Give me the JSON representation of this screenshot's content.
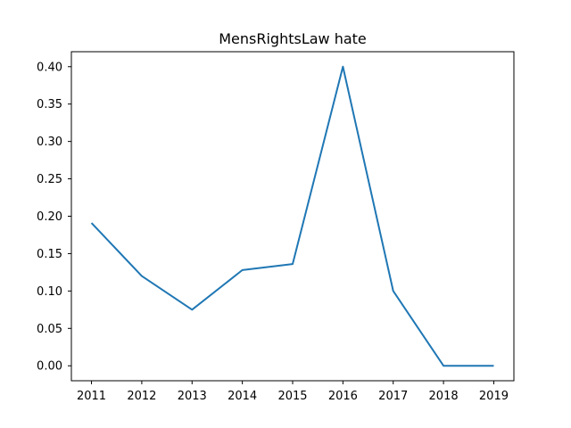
{
  "chart_data": {
    "type": "line",
    "title": "MensRightsLaw hate",
    "xlabel": "",
    "ylabel": "",
    "x": [
      2011,
      2012,
      2013,
      2014,
      2015,
      2016,
      2017,
      2018,
      2019
    ],
    "series": [
      {
        "values": [
          0.191,
          0.12,
          0.075,
          0.128,
          0.136,
          0.4,
          0.1,
          0.0,
          0.0
        ],
        "color": "#1f77b4"
      }
    ],
    "x_ticks": [
      "2011",
      "2012",
      "2013",
      "2014",
      "2015",
      "2016",
      "2017",
      "2018",
      "2019"
    ],
    "y_ticks": [
      "0.00",
      "0.05",
      "0.10",
      "0.15",
      "0.20",
      "0.25",
      "0.30",
      "0.35",
      "0.40"
    ],
    "xlim": [
      2010.6,
      2019.4
    ],
    "ylim": [
      -0.02,
      0.42
    ],
    "grid": false,
    "legend": "none"
  }
}
